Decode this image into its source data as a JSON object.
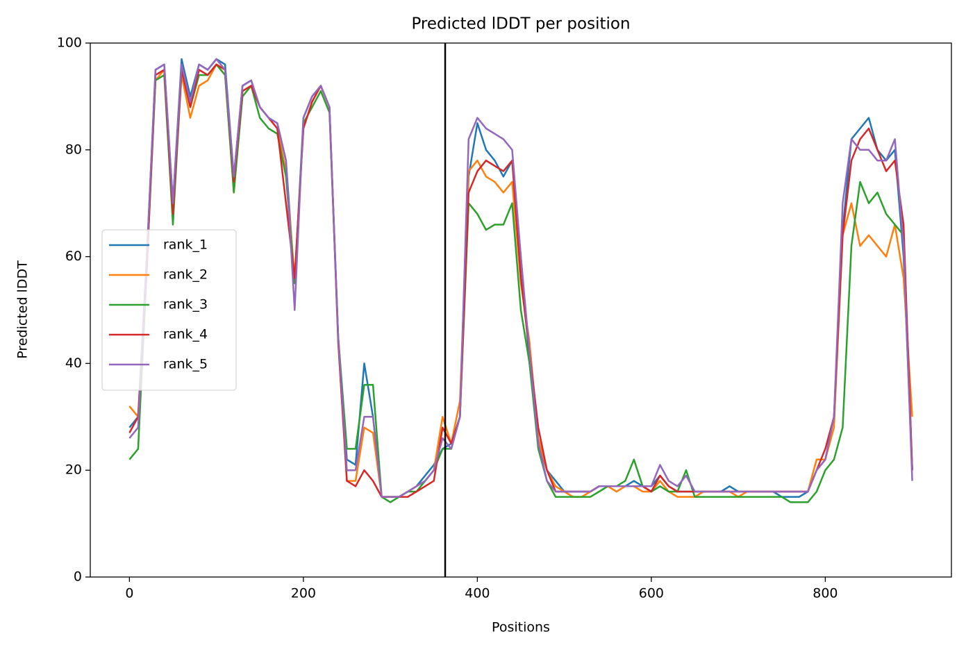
{
  "chart_data": {
    "type": "line",
    "title": "Predicted lDDT per position",
    "xlabel": "Positions",
    "ylabel": "Predicted lDDT",
    "xlim": [
      -45,
      945
    ],
    "ylim": [
      0,
      100
    ],
    "xticks": [
      0,
      200,
      400,
      600,
      800
    ],
    "yticks": [
      0,
      20,
      40,
      60,
      80,
      100
    ],
    "grid": false,
    "legend": "center left",
    "vline": 363,
    "vline_color": "#000000",
    "x": [
      0,
      10,
      20,
      30,
      40,
      50,
      60,
      70,
      80,
      90,
      100,
      110,
      120,
      130,
      140,
      150,
      160,
      170,
      180,
      190,
      200,
      210,
      220,
      230,
      240,
      250,
      260,
      270,
      280,
      290,
      300,
      310,
      320,
      330,
      340,
      350,
      360,
      370,
      380,
      390,
      400,
      410,
      420,
      430,
      440,
      450,
      460,
      470,
      480,
      490,
      500,
      510,
      520,
      530,
      540,
      550,
      560,
      570,
      580,
      590,
      600,
      610,
      620,
      630,
      640,
      650,
      660,
      670,
      680,
      690,
      700,
      710,
      720,
      730,
      740,
      750,
      760,
      770,
      780,
      790,
      800,
      810,
      820,
      830,
      840,
      850,
      860,
      870,
      880,
      890,
      900
    ],
    "series": [
      {
        "name": "rank_1",
        "color": "#1f77b4",
        "values": [
          28,
          30,
          60,
          95,
          96,
          70,
          97,
          90,
          96,
          95,
          97,
          96,
          75,
          92,
          93,
          88,
          86,
          85,
          78,
          55,
          86,
          90,
          92,
          88,
          45,
          22,
          21,
          40,
          30,
          15,
          15,
          15,
          16,
          17,
          19,
          21,
          24,
          25,
          30,
          75,
          85,
          80,
          78,
          75,
          78,
          60,
          40,
          25,
          20,
          18,
          16,
          16,
          16,
          16,
          17,
          17,
          17,
          17,
          18,
          17,
          17,
          19,
          17,
          16,
          16,
          16,
          16,
          16,
          16,
          17,
          16,
          16,
          16,
          16,
          16,
          15,
          15,
          15,
          16,
          20,
          22,
          30,
          65,
          82,
          84,
          86,
          80,
          78,
          80,
          60,
          20
        ]
      },
      {
        "name": "rank_2",
        "color": "#ff7f0e",
        "values": [
          32,
          30,
          58,
          93,
          95,
          68,
          94,
          86,
          92,
          93,
          96,
          94,
          72,
          91,
          92,
          88,
          86,
          84,
          76,
          56,
          84,
          89,
          92,
          88,
          44,
          18,
          18,
          28,
          27,
          15,
          15,
          15,
          16,
          17,
          18,
          20,
          30,
          25,
          33,
          76,
          78,
          75,
          74,
          72,
          74,
          55,
          44,
          26,
          20,
          17,
          16,
          15,
          15,
          16,
          17,
          17,
          16,
          17,
          17,
          16,
          16,
          18,
          16,
          15,
          15,
          15,
          16,
          16,
          16,
          16,
          15,
          16,
          16,
          16,
          16,
          16,
          16,
          16,
          16,
          22,
          22,
          28,
          64,
          70,
          62,
          64,
          62,
          60,
          66,
          56,
          30
        ]
      },
      {
        "name": "rank_3",
        "color": "#2ca02c",
        "values": [
          22,
          24,
          58,
          93,
          94,
          66,
          95,
          88,
          94,
          94,
          96,
          94,
          72,
          90,
          92,
          86,
          84,
          83,
          75,
          55,
          85,
          88,
          91,
          87,
          45,
          24,
          24,
          36,
          36,
          15,
          14,
          15,
          16,
          16,
          18,
          20,
          24,
          24,
          30,
          70,
          68,
          65,
          66,
          66,
          70,
          50,
          40,
          24,
          18,
          15,
          15,
          15,
          15,
          15,
          16,
          17,
          17,
          18,
          22,
          17,
          16,
          17,
          16,
          16,
          20,
          15,
          15,
          15,
          15,
          15,
          15,
          15,
          15,
          15,
          15,
          15,
          14,
          14,
          14,
          16,
          20,
          22,
          28,
          62,
          74,
          70,
          72,
          68,
          66,
          64,
          20
        ]
      },
      {
        "name": "rank_4",
        "color": "#d62728",
        "values": [
          27,
          30,
          58,
          94,
          95,
          68,
          95,
          88,
          95,
          94,
          96,
          95,
          74,
          91,
          92,
          88,
          86,
          84,
          70,
          56,
          84,
          89,
          92,
          88,
          44,
          18,
          17,
          20,
          18,
          15,
          15,
          15,
          15,
          16,
          17,
          18,
          28,
          25,
          30,
          72,
          76,
          78,
          77,
          76,
          78,
          56,
          42,
          28,
          20,
          16,
          16,
          16,
          16,
          16,
          17,
          17,
          17,
          17,
          17,
          17,
          16,
          19,
          17,
          16,
          16,
          16,
          16,
          16,
          16,
          16,
          16,
          16,
          16,
          16,
          16,
          16,
          16,
          16,
          16,
          20,
          24,
          30,
          64,
          78,
          82,
          84,
          80,
          76,
          78,
          66,
          20
        ]
      },
      {
        "name": "rank_5",
        "color": "#9467bd",
        "values": [
          26,
          28,
          60,
          95,
          96,
          70,
          96,
          89,
          96,
          95,
          97,
          95,
          75,
          92,
          93,
          88,
          86,
          85,
          78,
          50,
          86,
          90,
          92,
          88,
          45,
          20,
          20,
          30,
          30,
          15,
          15,
          15,
          16,
          17,
          18,
          20,
          26,
          24,
          30,
          82,
          86,
          84,
          83,
          82,
          80,
          60,
          42,
          25,
          18,
          16,
          16,
          16,
          16,
          16,
          17,
          17,
          17,
          17,
          17,
          17,
          17,
          21,
          18,
          17,
          19,
          16,
          16,
          16,
          16,
          16,
          16,
          16,
          16,
          16,
          16,
          16,
          16,
          16,
          16,
          20,
          22,
          30,
          70,
          82,
          80,
          80,
          78,
          78,
          82,
          62,
          18
        ]
      }
    ]
  }
}
